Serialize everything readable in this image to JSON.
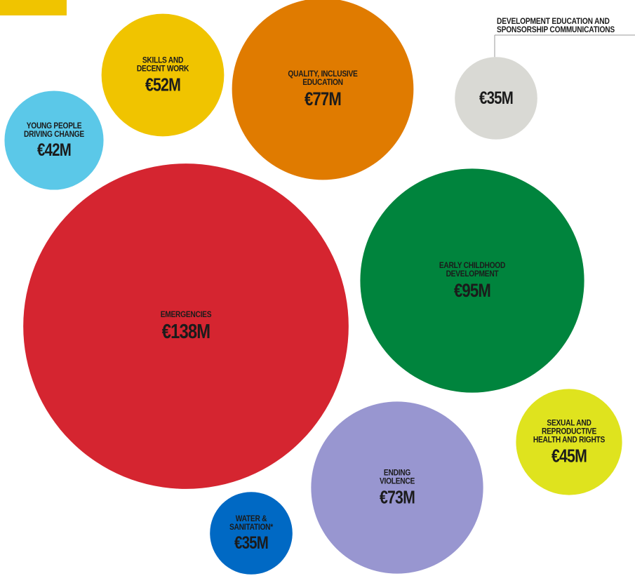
{
  "chart_data": {
    "type": "bubble",
    "categories": [
      "Skills and decent work",
      "Quality, inclusive education",
      "Development education and sponsorship communications",
      "Young people driving change",
      "Emergencies",
      "Early childhood development",
      "Sexual and reproductive health and rights",
      "Ending violence",
      "Water & sanitation*"
    ],
    "values": [
      52,
      77,
      35,
      42,
      138,
      95,
      45,
      73,
      35
    ],
    "value_labels": [
      "€52M",
      "€77M",
      "€35M",
      "€42M",
      "€138M",
      "€95M",
      "€45M",
      "€73M",
      "€35M"
    ],
    "colors": [
      "#f0c400",
      "#e07b00",
      "#d9d9d4",
      "#5bc8e8",
      "#d52530",
      "#00843d",
      "#dfe31e",
      "#9896d0",
      "#0069c4"
    ]
  }
}
